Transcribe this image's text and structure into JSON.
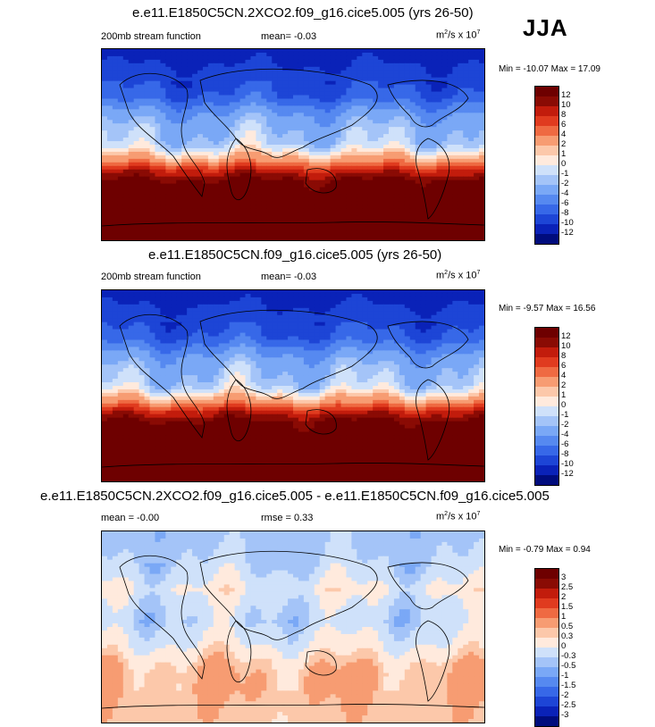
{
  "season": "JJA",
  "panels": [
    {
      "title": "e.e11.E1850C5CN.2XCO2.f09_g16.cice5.005 (yrs 26-50)",
      "left_label": "200mb stream function",
      "mid_label": "mean=  -0.03",
      "units_main": "m",
      "units_sup1": "2",
      "units_rest": "/s x 10",
      "units_sup2": "7",
      "minmax": "Min = -10.07 Max =  17.09"
    },
    {
      "title": "e.e11.E1850C5CN.f09_g16.cice5.005 (yrs 26-50)",
      "left_label": "200mb stream function",
      "mid_label": "mean=  -0.03",
      "units_main": "m",
      "units_sup1": "2",
      "units_rest": "/s x 10",
      "units_sup2": "7",
      "minmax": "Min =  -9.57 Max =  16.56"
    },
    {
      "title": "e.e11.E1850C5CN.2XCO2.f09_g16.cice5.005 - e.e11.E1850C5CN.f09_g16.cice5.005",
      "left_label": "mean =  -0.00",
      "mid_label": "rmse =   0.33",
      "units_main": "m",
      "units_sup1": "2",
      "units_rest": "/s x 10",
      "units_sup2": "7",
      "minmax": "Min = -0.79 Max =   0.94"
    }
  ],
  "chart_data": [
    {
      "type": "heatmap",
      "title": "e.e11.E1850C5CN.2XCO2.f09_g16.cice5.005 (yrs 26-50)",
      "variable": "200mb stream function",
      "units": "m2/s x 10^7",
      "mean": -0.03,
      "min": -10.07,
      "max": 17.09,
      "colorbar_levels": [
        "12",
        "10",
        "8",
        "6",
        "4",
        "2",
        "1",
        "0",
        "-1",
        "-2",
        "-4",
        "-6",
        "-8",
        "-10",
        "-12"
      ],
      "zonal_profile": {
        "lat": [
          90,
          75,
          60,
          45,
          35,
          25,
          15,
          5,
          0,
          -5,
          -15,
          -25,
          -35,
          -45,
          -60,
          -75,
          -90
        ],
        "value": [
          -11,
          -10,
          -9,
          -7.5,
          -5,
          -3,
          -2,
          -1.5,
          -1,
          0,
          3,
          9,
          13,
          14,
          14,
          14,
          14
        ]
      }
    },
    {
      "type": "heatmap",
      "title": "e.e11.E1850C5CN.f09_g16.cice5.005 (yrs 26-50)",
      "variable": "200mb stream function",
      "units": "m2/s x 10^7",
      "mean": -0.03,
      "min": -9.57,
      "max": 16.56,
      "colorbar_levels": [
        "12",
        "10",
        "8",
        "6",
        "4",
        "2",
        "1",
        "0",
        "-1",
        "-2",
        "-4",
        "-6",
        "-8",
        "-10",
        "-12"
      ],
      "zonal_profile": {
        "lat": [
          90,
          75,
          60,
          45,
          35,
          25,
          15,
          5,
          0,
          -5,
          -15,
          -25,
          -35,
          -45,
          -60,
          -75,
          -90
        ],
        "value": [
          -11,
          -10,
          -9,
          -7.5,
          -5,
          -3,
          -2,
          -1.5,
          -1,
          0,
          3,
          9,
          13,
          14,
          14,
          14,
          14
        ]
      }
    },
    {
      "type": "heatmap",
      "title": "e.e11.E1850C5CN.2XCO2.f09_g16.cice5.005 - e.e11.E1850C5CN.f09_g16.cice5.005",
      "variable": "200mb stream function difference",
      "units": "m2/s x 10^7",
      "mean": -0.0,
      "rmse": 0.33,
      "min": -0.79,
      "max": 0.94,
      "colorbar_levels": [
        "3",
        "2.5",
        "2",
        "1.5",
        "1",
        "0.5",
        "0.3",
        "0",
        "-0.3",
        "-0.5",
        "-1",
        "-1.5",
        "-2",
        "-2.5",
        "-3"
      ],
      "zonal_profile": {
        "lat": [
          90,
          75,
          60,
          45,
          35,
          25,
          15,
          5,
          0,
          -5,
          -15,
          -25,
          -35,
          -45,
          -60,
          -75,
          -90
        ],
        "value": [
          -0.4,
          -0.35,
          -0.3,
          -0.1,
          0.05,
          -0.1,
          -0.2,
          -0.25,
          -0.2,
          -0.1,
          0.0,
          0.2,
          0.4,
          0.5,
          0.5,
          0.45,
          0.4
        ]
      }
    }
  ],
  "colors": {
    "main_bins": [
      "#000c7d",
      "#0a22b8",
      "#1d45d6",
      "#3768e8",
      "#5689f0",
      "#7aa8f6",
      "#a4c4f8",
      "#cfe1fa",
      "#ffeadd",
      "#fcc8aa",
      "#f79c72",
      "#ef6a42",
      "#e03b1f",
      "#c21c0c",
      "#8a0b04",
      "#6e0000"
    ],
    "diff_bins": [
      "#000c7d",
      "#0a22b8",
      "#1d45d6",
      "#3768e8",
      "#5689f0",
      "#7aa8f6",
      "#a4c4f8",
      "#cfe1fa",
      "#ffeadd",
      "#fcc8aa",
      "#f79c72",
      "#ef6a42",
      "#e03b1f",
      "#c21c0c",
      "#8a0b04",
      "#6e0000"
    ],
    "coast": "#000000"
  }
}
